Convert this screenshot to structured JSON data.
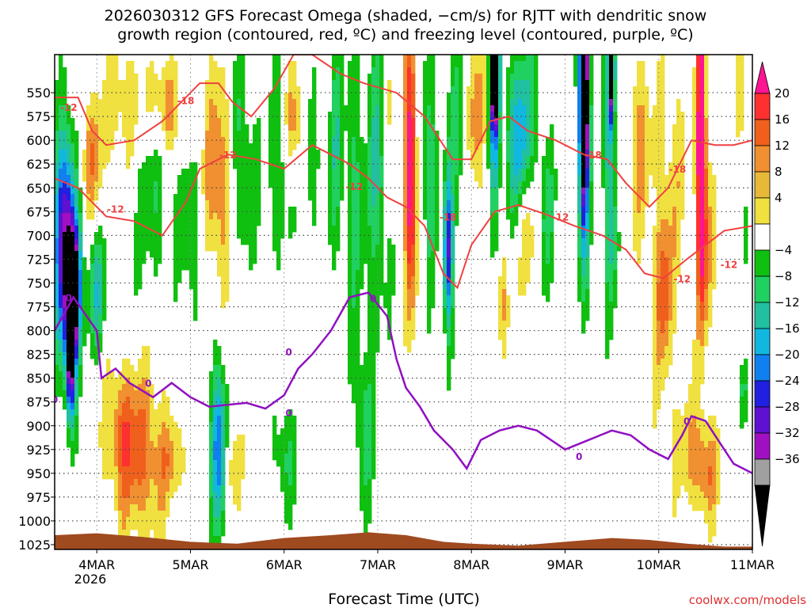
{
  "chart_data": {
    "type": "heatmap",
    "title_line1": "2026030312 GFS Forecast Omega (shaded, −cm/s) for RJTT with dendritic snow",
    "title_line2": "growth region (contoured, red, ºC) and freezing level (contoured, purple, ºC)",
    "xlabel": "Forecast Time (UTC)",
    "credit": "coolwx.com/models",
    "x_ticks": [
      "4MAR",
      "5MAR",
      "6MAR",
      "7MAR",
      "8MAR",
      "9MAR",
      "10MAR",
      "11MAR"
    ],
    "x_year": "2026",
    "x_range_days": [
      3.55,
      11.0
    ],
    "y_ticks": [
      "550",
      "575",
      "600",
      "625",
      "650",
      "675",
      "700",
      "725",
      "750",
      "775",
      "800",
      "825",
      "850",
      "875",
      "900",
      "925",
      "950",
      "975",
      "1000",
      "1025"
    ],
    "y_range_hpa": [
      1030,
      510
    ],
    "colorbar_labels": [
      "20",
      "16",
      "12",
      "8",
      "4",
      "−4",
      "−8",
      "−12",
      "−16",
      "−20",
      "−24",
      "−28",
      "−32",
      "−36"
    ],
    "colorbar_colors": [
      "#ff1493",
      "#ff3030",
      "#f0601c",
      "#f09030",
      "#e8b838",
      "#f0e040",
      "#ffffff",
      "#10c010",
      "#20d060",
      "#20c0a0",
      "#10b8e0",
      "#1080f0",
      "#2020e0",
      "#6010d0",
      "#a010c0",
      "#a0a0a0",
      "#000000"
    ],
    "contour_colors": {
      "snow_growth": "#f04040",
      "freezing_level": "#9010c0",
      "terrain": "#a04a20"
    },
    "red_contour_labels": [
      "-12",
      "-18",
      "-12",
      "-12",
      "-12",
      "-18",
      "-12",
      "-18",
      "-18",
      "-12",
      "-12"
    ],
    "purple_contour_labels": [
      "0",
      "0",
      "0",
      "0",
      "0",
      "0",
      "0",
      "0"
    ],
    "freezing_level_hpa": [
      [
        3.55,
        800
      ],
      [
        3.75,
        765
      ],
      [
        4.0,
        800
      ],
      [
        4.05,
        850
      ],
      [
        4.2,
        840
      ],
      [
        4.35,
        855
      ],
      [
        4.6,
        870
      ],
      [
        4.8,
        855
      ],
      [
        5.0,
        870
      ],
      [
        5.2,
        880
      ],
      [
        5.4,
        878
      ],
      [
        5.6,
        876
      ],
      [
        5.8,
        882
      ],
      [
        6.0,
        868
      ],
      [
        6.15,
        840
      ],
      [
        6.3,
        825
      ],
      [
        6.5,
        800
      ],
      [
        6.7,
        765
      ],
      [
        6.9,
        760
      ],
      [
        7.1,
        785
      ],
      [
        7.2,
        830
      ],
      [
        7.3,
        860
      ],
      [
        7.45,
        880
      ],
      [
        7.6,
        905
      ],
      [
        7.8,
        925
      ],
      [
        7.95,
        945
      ],
      [
        8.1,
        915
      ],
      [
        8.3,
        905
      ],
      [
        8.5,
        900
      ],
      [
        8.7,
        905
      ],
      [
        9.0,
        925
      ],
      [
        9.25,
        915
      ],
      [
        9.5,
        905
      ],
      [
        9.7,
        910
      ],
      [
        9.9,
        925
      ],
      [
        10.1,
        935
      ],
      [
        10.25,
        910
      ],
      [
        10.35,
        890
      ],
      [
        10.5,
        895
      ],
      [
        10.6,
        910
      ],
      [
        10.8,
        940
      ],
      [
        11.0,
        950
      ]
    ],
    "dgz_top_hpa": [
      [
        3.55,
        555
      ],
      [
        3.8,
        555
      ],
      [
        3.95,
        590
      ],
      [
        4.1,
        605
      ],
      [
        4.4,
        600
      ],
      [
        4.7,
        580
      ],
      [
        4.95,
        555
      ],
      [
        5.1,
        540
      ],
      [
        5.3,
        540
      ],
      [
        5.45,
        560
      ],
      [
        5.65,
        575
      ],
      [
        5.9,
        545
      ],
      [
        6.1,
        510
      ],
      [
        6.3,
        510
      ],
      [
        6.6,
        530
      ],
      [
        6.85,
        540
      ],
      [
        7.2,
        550
      ],
      [
        7.5,
        575
      ],
      [
        7.8,
        620
      ],
      [
        8.0,
        620
      ],
      [
        8.2,
        580
      ],
      [
        8.4,
        575
      ],
      [
        8.6,
        590
      ],
      [
        8.9,
        600
      ],
      [
        9.2,
        615
      ],
      [
        9.45,
        620
      ],
      [
        9.65,
        645
      ],
      [
        9.9,
        670
      ],
      [
        10.1,
        650
      ],
      [
        10.35,
        600
      ],
      [
        10.6,
        605
      ],
      [
        10.8,
        605
      ],
      [
        11.0,
        600
      ]
    ],
    "dgz_bottom_hpa": [
      [
        3.55,
        640
      ],
      [
        3.8,
        650
      ],
      [
        4.1,
        680
      ],
      [
        4.4,
        685
      ],
      [
        4.7,
        700
      ],
      [
        4.95,
        665
      ],
      [
        5.1,
        630
      ],
      [
        5.4,
        615
      ],
      [
        5.7,
        620
      ],
      [
        6.0,
        630
      ],
      [
        6.3,
        605
      ],
      [
        6.5,
        615
      ],
      [
        6.7,
        625
      ],
      [
        6.9,
        640
      ],
      [
        7.1,
        660
      ],
      [
        7.3,
        670
      ],
      [
        7.5,
        690
      ],
      [
        7.7,
        740
      ],
      [
        7.85,
        755
      ],
      [
        8.0,
        710
      ],
      [
        8.25,
        675
      ],
      [
        8.5,
        668
      ],
      [
        8.8,
        678
      ],
      [
        9.1,
        690
      ],
      [
        9.4,
        700
      ],
      [
        9.65,
        715
      ],
      [
        9.85,
        740
      ],
      [
        10.05,
        745
      ],
      [
        10.3,
        725
      ],
      [
        10.5,
        710
      ],
      [
        10.7,
        695
      ],
      [
        11.0,
        690
      ]
    ]
  }
}
